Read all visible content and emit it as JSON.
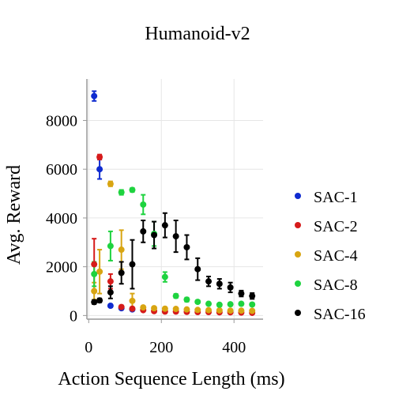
{
  "chart_data": {
    "type": "scatter",
    "title": "Humanoid-v2",
    "xlabel": "Action Sequence Length (ms)",
    "ylabel": "Avg. Reward",
    "xlim": [
      -5,
      480
    ],
    "ylim": [
      -150,
      9700
    ],
    "xticks": [
      0,
      200,
      400
    ],
    "yticks": [
      0,
      2000,
      4000,
      6000,
      8000
    ],
    "xtick_labels": [
      "0",
      "200",
      "400"
    ],
    "ytick_labels": [
      "0",
      "2000",
      "4000",
      "6000",
      "8000"
    ],
    "grid": true,
    "legend_position": "right",
    "series": [
      {
        "name": "SAC-1",
        "color": "#0f2bd0",
        "points": [
          {
            "x": 15,
            "y": 9000,
            "err": 200
          },
          {
            "x": 30,
            "y": 6000,
            "err": 400
          },
          {
            "x": 60,
            "y": 400,
            "err": 60
          },
          {
            "x": 90,
            "y": 300,
            "err": 50
          },
          {
            "x": 120,
            "y": 250,
            "err": 40
          }
        ]
      },
      {
        "name": "SAC-2",
        "color": "#d61b1b",
        "points": [
          {
            "x": 30,
            "y": 6500,
            "err": 100
          },
          {
            "x": 15,
            "y": 2100,
            "err": 1050
          },
          {
            "x": 60,
            "y": 1400,
            "err": 300
          },
          {
            "x": 90,
            "y": 350,
            "err": 60
          },
          {
            "x": 120,
            "y": 280,
            "err": 50
          },
          {
            "x": 150,
            "y": 220,
            "err": 40
          },
          {
            "x": 180,
            "y": 180,
            "err": 40
          },
          {
            "x": 210,
            "y": 160,
            "err": 30
          },
          {
            "x": 240,
            "y": 160,
            "err": 30
          },
          {
            "x": 270,
            "y": 150,
            "err": 30
          },
          {
            "x": 300,
            "y": 140,
            "err": 30
          },
          {
            "x": 330,
            "y": 140,
            "err": 30
          },
          {
            "x": 360,
            "y": 130,
            "err": 30
          },
          {
            "x": 390,
            "y": 130,
            "err": 30
          },
          {
            "x": 420,
            "y": 120,
            "err": 30
          },
          {
            "x": 450,
            "y": 110,
            "err": 30
          }
        ]
      },
      {
        "name": "SAC-4",
        "color": "#d8a512",
        "points": [
          {
            "x": 15,
            "y": 1000,
            "err": 350
          },
          {
            "x": 30,
            "y": 1800,
            "err": 900
          },
          {
            "x": 60,
            "y": 5400,
            "err": 100
          },
          {
            "x": 90,
            "y": 2700,
            "err": 800
          },
          {
            "x": 120,
            "y": 600,
            "err": 300
          },
          {
            "x": 150,
            "y": 330,
            "err": 60
          },
          {
            "x": 180,
            "y": 300,
            "err": 50
          },
          {
            "x": 210,
            "y": 280,
            "err": 40
          },
          {
            "x": 240,
            "y": 270,
            "err": 40
          },
          {
            "x": 270,
            "y": 250,
            "err": 40
          },
          {
            "x": 300,
            "y": 230,
            "err": 40
          },
          {
            "x": 330,
            "y": 220,
            "err": 40
          },
          {
            "x": 360,
            "y": 210,
            "err": 40
          },
          {
            "x": 390,
            "y": 200,
            "err": 40
          },
          {
            "x": 420,
            "y": 200,
            "err": 40
          },
          {
            "x": 450,
            "y": 190,
            "err": 40
          }
        ]
      },
      {
        "name": "SAC-8",
        "color": "#1ed33f",
        "points": [
          {
            "x": 15,
            "y": 1700,
            "err": 500
          },
          {
            "x": 60,
            "y": 2850,
            "err": 600
          },
          {
            "x": 90,
            "y": 5050,
            "err": 100
          },
          {
            "x": 120,
            "y": 5150,
            "err": 80
          },
          {
            "x": 150,
            "y": 4550,
            "err": 400
          },
          {
            "x": 180,
            "y": 3350,
            "err": 500
          },
          {
            "x": 210,
            "y": 1580,
            "err": 200
          },
          {
            "x": 240,
            "y": 800,
            "err": 80
          },
          {
            "x": 270,
            "y": 650,
            "err": 80
          },
          {
            "x": 300,
            "y": 560,
            "err": 60
          },
          {
            "x": 330,
            "y": 480,
            "err": 60
          },
          {
            "x": 360,
            "y": 440,
            "err": 60
          },
          {
            "x": 390,
            "y": 460,
            "err": 60
          },
          {
            "x": 420,
            "y": 480,
            "err": 60
          },
          {
            "x": 450,
            "y": 450,
            "err": 60
          }
        ]
      },
      {
        "name": "SAC-16",
        "color": "#000000",
        "points": [
          {
            "x": 15,
            "y": 550,
            "err": 80
          },
          {
            "x": 30,
            "y": 620,
            "err": 80
          },
          {
            "x": 60,
            "y": 950,
            "err": 250
          },
          {
            "x": 90,
            "y": 1750,
            "err": 450
          },
          {
            "x": 120,
            "y": 2100,
            "err": 1000
          },
          {
            "x": 150,
            "y": 3450,
            "err": 450
          },
          {
            "x": 180,
            "y": 3300,
            "err": 550
          },
          {
            "x": 210,
            "y": 3700,
            "err": 500
          },
          {
            "x": 240,
            "y": 3250,
            "err": 650
          },
          {
            "x": 270,
            "y": 2800,
            "err": 500
          },
          {
            "x": 300,
            "y": 1900,
            "err": 450
          },
          {
            "x": 330,
            "y": 1400,
            "err": 200
          },
          {
            "x": 360,
            "y": 1300,
            "err": 200
          },
          {
            "x": 390,
            "y": 1150,
            "err": 200
          },
          {
            "x": 420,
            "y": 900,
            "err": 120
          },
          {
            "x": 450,
            "y": 800,
            "err": 120
          }
        ]
      }
    ]
  }
}
